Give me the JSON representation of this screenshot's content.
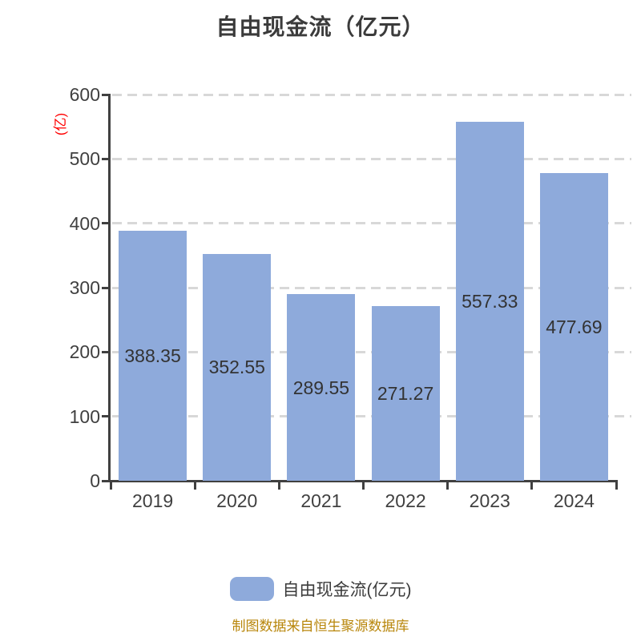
{
  "title": {
    "text": "自由现金流（亿元）"
  },
  "y_axis": {
    "unit_label": "(亿)",
    "unit_color": "#ff0000",
    "tick_labels": [
      "600",
      "500",
      "400",
      "300",
      "200",
      "100",
      "0"
    ]
  },
  "legend": {
    "label": "自由现金流(亿元)",
    "swatch_color": "#8eaadb"
  },
  "footer": {
    "text": "制图数据来自恒生聚源数据库",
    "color": "#b8860b"
  },
  "chart_data": {
    "type": "bar",
    "title": "自由现金流（亿元）",
    "series_name": "自由现金流(亿元)",
    "categories": [
      "2019",
      "2020",
      "2021",
      "2022",
      "2023",
      "2024"
    ],
    "values": [
      388.35,
      352.55,
      289.55,
      271.27,
      557.33,
      477.69
    ],
    "value_labels": [
      "388.35",
      "352.55",
      "289.55",
      "271.27",
      "557.33",
      "477.69"
    ],
    "ylabel": "(亿)",
    "xlabel": "",
    "ylim": [
      0,
      600
    ],
    "y_tick_interval": 100,
    "grid": true,
    "gridline_style": "dashed",
    "gridline_color": "#d8d8d8",
    "axis_color": "#404040",
    "bar_color": "#8eaadb",
    "label_position": "inside-center",
    "legend_position": "bottom"
  }
}
